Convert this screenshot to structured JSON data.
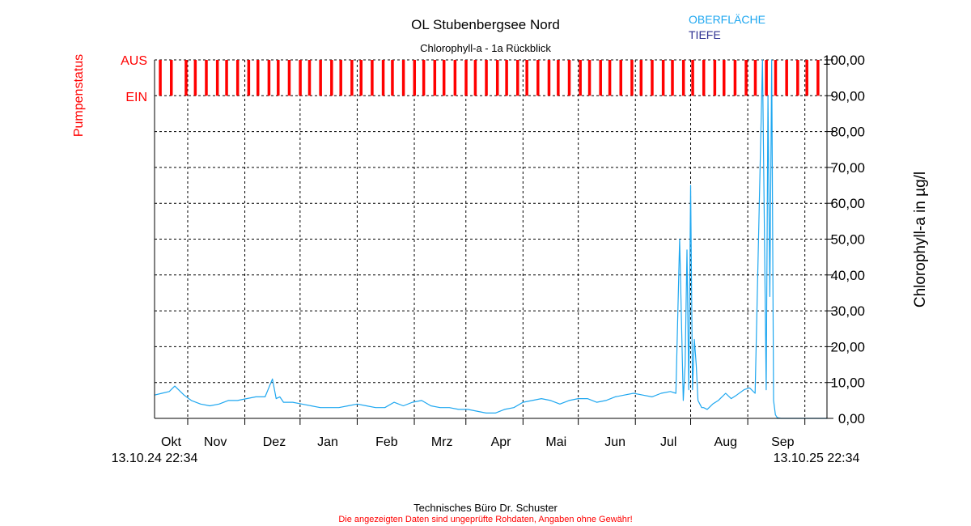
{
  "colors": {
    "surface": "#1ea7f0",
    "depth": "#2e3192",
    "pump": "#ff0000",
    "grid": "#000000",
    "text": "#000000",
    "disclaimer": "#ff0000"
  },
  "chart_data": {
    "type": "line",
    "title": "OL Stubenbergsee Nord",
    "subtitle": "Chlorophyll-a - 1a Rückblick",
    "legend": {
      "placement": "top-right",
      "entries": [
        {
          "label": "OBERFLÄCHE",
          "color": "#1ea7f0"
        },
        {
          "label": "TIEFE",
          "color": "#2e3192"
        }
      ]
    },
    "ylabel": "Chlorophyll-a in µg/l",
    "ylim": [
      0,
      100
    ],
    "yticks": [
      {
        "v": 0,
        "label": "0,00"
      },
      {
        "v": 10,
        "label": "10,00"
      },
      {
        "v": 20,
        "label": "20,00"
      },
      {
        "v": 30,
        "label": "30,00"
      },
      {
        "v": 40,
        "label": "40,00"
      },
      {
        "v": 50,
        "label": "50,00"
      },
      {
        "v": 60,
        "label": "60,00"
      },
      {
        "v": 70,
        "label": "70,00"
      },
      {
        "v": 80,
        "label": "80,00"
      },
      {
        "v": 90,
        "label": "90,00"
      },
      {
        "v": 100,
        "label": "100,00"
      }
    ],
    "pump_axis": {
      "label": "Pumpenstatus",
      "states": [
        {
          "label": "AUS",
          "v": 100
        },
        {
          "label": "EIN",
          "v": 90
        }
      ]
    },
    "x_start_label": "13.10.24 22:34",
    "x_end_label": "13.10.25 22:34",
    "x_range_days": [
      0,
      365
    ],
    "month_labels": [
      {
        "label": "Okt",
        "day": 9
      },
      {
        "label": "Nov",
        "day": 33
      },
      {
        "label": "Dez",
        "day": 65
      },
      {
        "label": "Jan",
        "day": 94
      },
      {
        "label": "Feb",
        "day": 126
      },
      {
        "label": "Mrz",
        "day": 156
      },
      {
        "label": "Apr",
        "day": 188
      },
      {
        "label": "Mai",
        "day": 218
      },
      {
        "label": "Jun",
        "day": 250
      },
      {
        "label": "Jul",
        "day": 279
      },
      {
        "label": "Aug",
        "day": 310
      },
      {
        "label": "Sep",
        "day": 341
      }
    ],
    "grid_lines_days": [
      18,
      49,
      79,
      110,
      141,
      169,
      200,
      230,
      261,
      291,
      322,
      353
    ],
    "grid": true,
    "series": [
      {
        "name": "OBERFLÄCHE",
        "color": "#1ea7f0",
        "x": [
          0,
          4,
          8,
          11,
          13,
          16,
          20,
          25,
          30,
          35,
          40,
          45,
          50,
          55,
          60,
          64,
          66,
          68,
          70,
          75,
          80,
          85,
          90,
          95,
          100,
          105,
          110,
          115,
          120,
          125,
          130,
          135,
          140,
          145,
          150,
          155,
          160,
          165,
          170,
          175,
          180,
          185,
          190,
          195,
          200,
          205,
          210,
          215,
          220,
          225,
          230,
          235,
          240,
          245,
          250,
          255,
          260,
          265,
          270,
          275,
          280,
          283,
          285,
          287,
          288,
          289,
          290,
          291,
          292,
          293,
          294,
          295,
          296,
          297,
          298,
          300,
          303,
          306,
          310,
          313,
          316,
          320,
          323,
          326,
          330,
          332,
          333,
          334,
          335,
          336,
          337,
          338,
          340,
          345,
          350,
          355,
          365
        ],
        "y": [
          6.5,
          7,
          7.5,
          9,
          8,
          6.5,
          5,
          4,
          3.5,
          4,
          5,
          5,
          5.5,
          6,
          6,
          11,
          5.5,
          6,
          4.5,
          4.5,
          4,
          3.5,
          3,
          3,
          3,
          3.5,
          4,
          3.5,
          3,
          3,
          4.5,
          3.5,
          4.5,
          5,
          3.5,
          3,
          3,
          2.5,
          2.5,
          2,
          1.5,
          1.5,
          2.5,
          3,
          4.5,
          5,
          5.5,
          5,
          4,
          5,
          5.5,
          5.5,
          4.5,
          5,
          6,
          6.5,
          7,
          6.5,
          6,
          7,
          7.5,
          7,
          50,
          5,
          15,
          47,
          8,
          65,
          8,
          22,
          15,
          5,
          4,
          3,
          3,
          2.5,
          4,
          5,
          7,
          5.5,
          6.5,
          8,
          8.5,
          7,
          100,
          8,
          90,
          34,
          100,
          5,
          1,
          0.2,
          0,
          0,
          0,
          0,
          0
        ]
      },
      {
        "name": "TIEFE",
        "color": "#2e3192",
        "x": [],
        "y": []
      }
    ],
    "pump_off_days": [
      3,
      9,
      17,
      22,
      28,
      34,
      39,
      45,
      51,
      56,
      62,
      67,
      73,
      79,
      84,
      90,
      96,
      101,
      107,
      112,
      118,
      124,
      129,
      135,
      141,
      146,
      152,
      157,
      163,
      169,
      174,
      180,
      186,
      191,
      197,
      202,
      208,
      214,
      219,
      225,
      231,
      236,
      242,
      247,
      253,
      259,
      264,
      270,
      276,
      281,
      287,
      292,
      298,
      304,
      309,
      315,
      321,
      326,
      332,
      337,
      343,
      349,
      354,
      360
    ]
  },
  "footer": {
    "company": "Technisches Büro Dr. Schuster",
    "disclaimer": "Die angezeigten Daten sind ungeprüfte Rohdaten, Angaben ohne Gewähr!"
  }
}
